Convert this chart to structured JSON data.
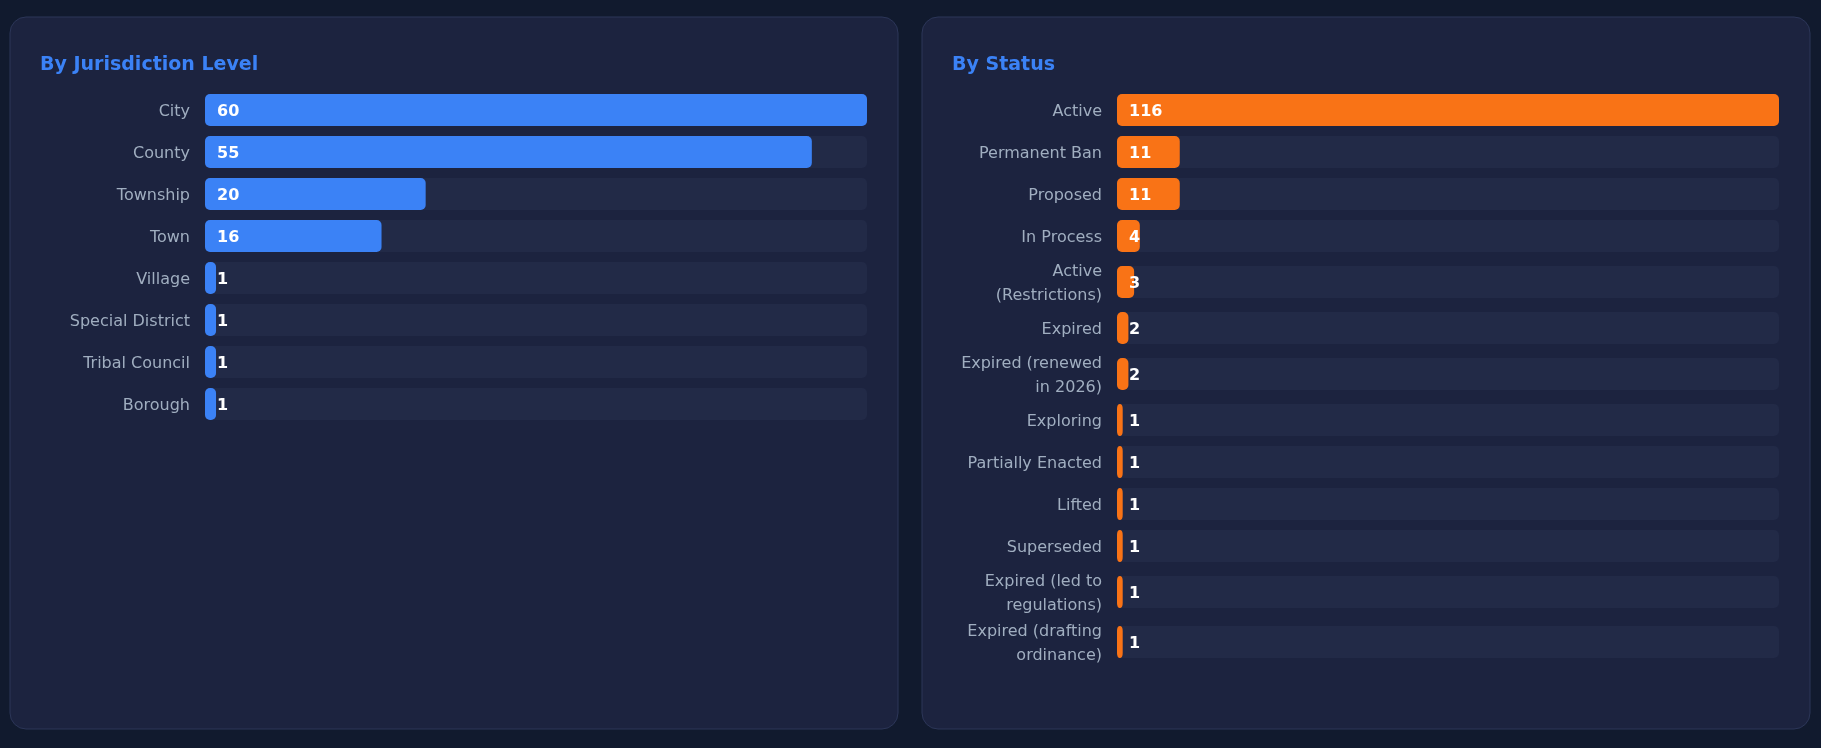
{
  "chart_data": [
    {
      "type": "bar",
      "orientation": "horizontal",
      "title": "By Jurisdiction Level",
      "categories": [
        "City",
        "County",
        "Township",
        "Town",
        "Village",
        "Special District",
        "Tribal Council",
        "Borough"
      ],
      "values": [
        60,
        55,
        20,
        16,
        1,
        1,
        1,
        1
      ],
      "xlim": [
        0,
        60
      ],
      "color": "#3b82f6",
      "data_labels": true
    },
    {
      "type": "bar",
      "orientation": "horizontal",
      "title": "By Status",
      "categories": [
        "Active",
        "Permanent Ban",
        "Proposed",
        "In Process",
        "Active (Restrictions)",
        "Expired",
        "Expired (renewed in 2026)",
        "Exploring",
        "Partially Enacted",
        "Lifted",
        "Superseded",
        "Expired (led to regulations)",
        "Expired (drafting ordinance)"
      ],
      "values": [
        116,
        11,
        11,
        4,
        3,
        2,
        2,
        1,
        1,
        1,
        1,
        1,
        1
      ],
      "xlim": [
        0,
        116
      ],
      "color": "#f97316",
      "data_labels": true
    }
  ]
}
